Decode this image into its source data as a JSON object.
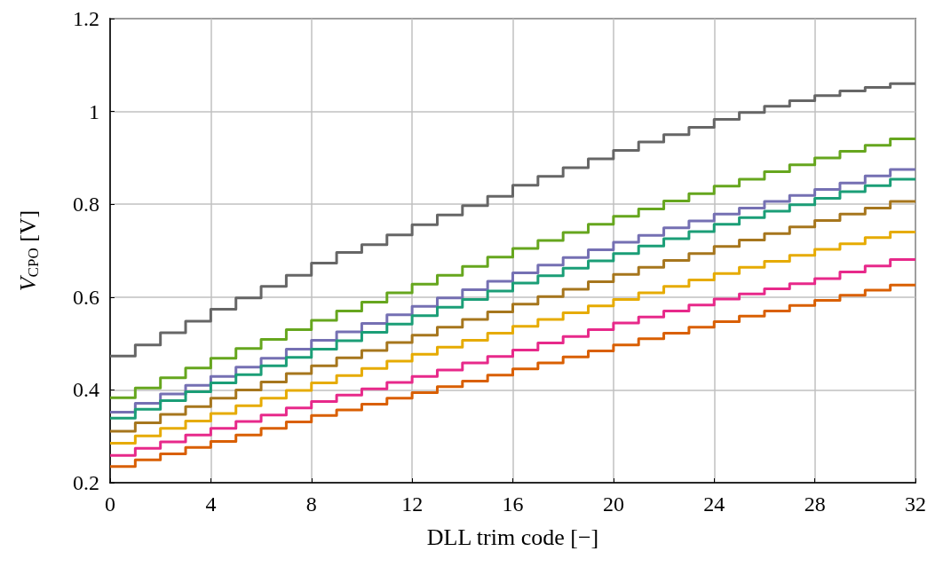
{
  "chart_data": {
    "type": "step",
    "xlabel": "DLL trim code [−]",
    "ylabel": "V$_{CPO}$ [V]",
    "x": [
      0,
      1,
      2,
      3,
      4,
      5,
      6,
      7,
      8,
      9,
      10,
      11,
      12,
      13,
      14,
      15,
      16,
      17,
      18,
      19,
      20,
      21,
      22,
      23,
      24,
      25,
      26,
      27,
      28,
      29,
      30,
      31,
      32
    ],
    "xlim": [
      0,
      32
    ],
    "xticks": [
      0,
      4,
      8,
      12,
      16,
      20,
      24,
      28,
      32
    ],
    "ylim": [
      0.2,
      1.2
    ],
    "yticks": [
      0.2,
      0.4,
      0.6,
      0.8,
      1,
      1.2
    ],
    "grid": true,
    "line_style": "solid",
    "marker": "none",
    "series": [
      {
        "color": "#666666",
        "values": [
          0.473,
          0.497,
          0.523,
          0.548,
          0.574,
          0.598,
          0.623,
          0.647,
          0.673,
          0.696,
          0.713,
          0.734,
          0.756,
          0.777,
          0.797,
          0.817,
          0.841,
          0.86,
          0.879,
          0.898,
          0.916,
          0.934,
          0.95,
          0.966,
          0.983,
          0.998,
          1.011,
          1.023,
          1.034,
          1.044,
          1.052,
          1.06,
          1.06
        ]
      },
      {
        "color": "#66a61e",
        "values": [
          0.383,
          0.404,
          0.426,
          0.447,
          0.468,
          0.489,
          0.509,
          0.53,
          0.55,
          0.57,
          0.589,
          0.609,
          0.628,
          0.647,
          0.666,
          0.686,
          0.705,
          0.722,
          0.739,
          0.757,
          0.774,
          0.79,
          0.807,
          0.823,
          0.839,
          0.854,
          0.87,
          0.885,
          0.9,
          0.914,
          0.927,
          0.941,
          0.941
        ]
      },
      {
        "color": "#7570b3",
        "values": [
          0.352,
          0.371,
          0.391,
          0.41,
          0.429,
          0.449,
          0.468,
          0.488,
          0.507,
          0.525,
          0.543,
          0.562,
          0.58,
          0.598,
          0.616,
          0.634,
          0.652,
          0.669,
          0.685,
          0.702,
          0.718,
          0.733,
          0.749,
          0.764,
          0.779,
          0.792,
          0.806,
          0.819,
          0.832,
          0.846,
          0.861,
          0.875,
          0.875
        ]
      },
      {
        "color": "#1b9e77",
        "values": [
          0.339,
          0.358,
          0.377,
          0.396,
          0.415,
          0.433,
          0.452,
          0.47,
          0.488,
          0.506,
          0.524,
          0.542,
          0.56,
          0.578,
          0.595,
          0.613,
          0.63,
          0.646,
          0.662,
          0.678,
          0.694,
          0.71,
          0.726,
          0.741,
          0.757,
          0.771,
          0.785,
          0.799,
          0.813,
          0.827,
          0.84,
          0.854,
          0.854
        ]
      },
      {
        "color": "#a6761d",
        "values": [
          0.311,
          0.329,
          0.347,
          0.364,
          0.382,
          0.4,
          0.417,
          0.435,
          0.452,
          0.469,
          0.485,
          0.502,
          0.518,
          0.535,
          0.552,
          0.568,
          0.585,
          0.601,
          0.617,
          0.633,
          0.649,
          0.664,
          0.679,
          0.694,
          0.709,
          0.723,
          0.737,
          0.751,
          0.765,
          0.779,
          0.792,
          0.806,
          0.806
        ]
      },
      {
        "color": "#e6ab02",
        "values": [
          0.285,
          0.301,
          0.317,
          0.333,
          0.349,
          0.366,
          0.382,
          0.399,
          0.415,
          0.431,
          0.446,
          0.462,
          0.477,
          0.492,
          0.507,
          0.522,
          0.537,
          0.552,
          0.566,
          0.581,
          0.595,
          0.609,
          0.623,
          0.637,
          0.651,
          0.664,
          0.677,
          0.69,
          0.703,
          0.715,
          0.728,
          0.74,
          0.74
        ]
      },
      {
        "color": "#e7298a",
        "values": [
          0.259,
          0.274,
          0.288,
          0.303,
          0.317,
          0.332,
          0.346,
          0.361,
          0.375,
          0.389,
          0.402,
          0.416,
          0.429,
          0.443,
          0.458,
          0.472,
          0.486,
          0.501,
          0.515,
          0.53,
          0.544,
          0.557,
          0.57,
          0.583,
          0.596,
          0.607,
          0.618,
          0.629,
          0.64,
          0.654,
          0.667,
          0.681,
          0.681
        ]
      },
      {
        "color": "#d95f02",
        "values": [
          0.235,
          0.249,
          0.262,
          0.276,
          0.289,
          0.303,
          0.317,
          0.331,
          0.345,
          0.357,
          0.369,
          0.382,
          0.394,
          0.407,
          0.419,
          0.432,
          0.445,
          0.458,
          0.471,
          0.484,
          0.497,
          0.51,
          0.522,
          0.535,
          0.547,
          0.559,
          0.57,
          0.582,
          0.593,
          0.604,
          0.615,
          0.626,
          0.626
        ]
      }
    ]
  }
}
